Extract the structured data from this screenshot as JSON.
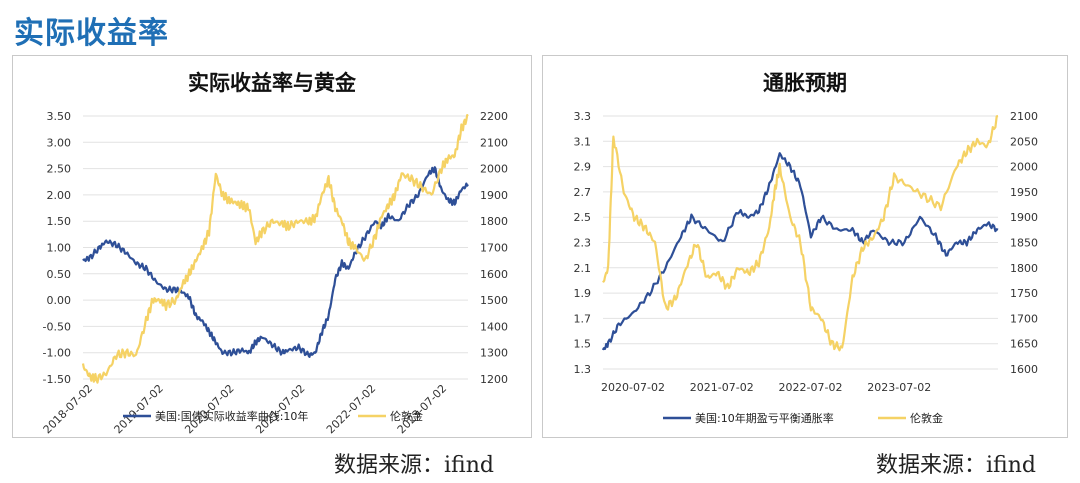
{
  "page": {
    "title": "实际收益率"
  },
  "colors": {
    "blue": "#2e4f97",
    "gold": "#f5d265",
    "title_blue": "#1f6fb5"
  },
  "chart_data": [
    {
      "type": "line",
      "title": "实际收益率与黄金",
      "x_ticks": [
        "2018-07-02",
        "2019-07-02",
        "2020-07-02",
        "2021-07-02",
        "2022-07-02",
        "2023-07-02"
      ],
      "y_left": {
        "lim": [
          -1.5,
          3.5
        ],
        "ticks": [
          "3.50",
          "3.00",
          "2.50",
          "2.00",
          "1.50",
          "1.00",
          "0.50",
          "0.00",
          "-0.50",
          "-1.00",
          "-1.50"
        ]
      },
      "y_right": {
        "lim": [
          1200,
          2200
        ],
        "ticks": [
          "2200",
          "2100",
          "2000",
          "1900",
          "1800",
          "1700",
          "1600",
          "1500",
          "1400",
          "1300",
          "1200"
        ]
      },
      "x_range": [
        2018.5,
        2024.3
      ],
      "series": [
        {
          "name": "美国:国债实际收益率曲线:10年",
          "axis": "left",
          "color": "#2e4f97",
          "x": [
            2018.5,
            2018.6,
            2018.75,
            2018.85,
            2019.0,
            2019.15,
            2019.3,
            2019.45,
            2019.6,
            2019.75,
            2019.9,
            2020.0,
            2020.1,
            2020.2,
            2020.3,
            2020.4,
            2020.5,
            2020.6,
            2020.75,
            2020.9,
            2021.0,
            2021.1,
            2021.2,
            2021.35,
            2021.5,
            2021.6,
            2021.75,
            2021.9,
            2022.0,
            2022.1,
            2022.2,
            2022.3,
            2022.4,
            2022.5,
            2022.6,
            2022.75,
            2022.9,
            2023.0,
            2023.1,
            2023.25,
            2023.4,
            2023.55,
            2023.7,
            2023.8,
            2023.9,
            2024.0,
            2024.1,
            2024.2,
            2024.3
          ],
          "values": [
            0.75,
            0.8,
            1.0,
            1.12,
            1.05,
            0.9,
            0.7,
            0.6,
            0.35,
            0.2,
            0.2,
            0.15,
            0.05,
            -0.3,
            -0.4,
            -0.6,
            -0.8,
            -1.0,
            -1.0,
            -0.95,
            -1.0,
            -0.8,
            -0.7,
            -0.85,
            -1.0,
            -0.95,
            -0.9,
            -1.05,
            -1.0,
            -0.6,
            -0.3,
            0.4,
            0.7,
            0.6,
            0.9,
            1.2,
            1.5,
            1.4,
            1.6,
            1.5,
            1.8,
            2.0,
            2.4,
            2.5,
            2.1,
            1.9,
            1.85,
            2.1,
            2.2
          ]
        },
        {
          "name": "伦敦金",
          "axis": "right",
          "color": "#f5d265",
          "x": [
            2018.5,
            2018.6,
            2018.7,
            2018.85,
            2019.0,
            2019.15,
            2019.3,
            2019.45,
            2019.55,
            2019.65,
            2019.75,
            2019.9,
            2020.0,
            2020.1,
            2020.2,
            2020.3,
            2020.4,
            2020.5,
            2020.6,
            2020.7,
            2020.8,
            2020.9,
            2021.0,
            2021.1,
            2021.2,
            2021.35,
            2021.5,
            2021.6,
            2021.75,
            2021.9,
            2022.0,
            2022.1,
            2022.2,
            2022.3,
            2022.4,
            2022.5,
            2022.6,
            2022.75,
            2022.9,
            2023.0,
            2023.1,
            2023.2,
            2023.3,
            2023.45,
            2023.6,
            2023.75,
            2023.9,
            2024.0,
            2024.1,
            2024.2,
            2024.3
          ],
          "values": [
            1250,
            1210,
            1200,
            1220,
            1290,
            1300,
            1290,
            1420,
            1500,
            1500,
            1480,
            1500,
            1560,
            1600,
            1650,
            1700,
            1760,
            1980,
            1900,
            1880,
            1870,
            1860,
            1850,
            1720,
            1760,
            1800,
            1790,
            1780,
            1800,
            1800,
            1810,
            1900,
            1960,
            1850,
            1800,
            1720,
            1700,
            1650,
            1740,
            1820,
            1860,
            1900,
            1980,
            1960,
            1930,
            1900,
            2000,
            2040,
            2050,
            2150,
            2200
          ]
        }
      ],
      "legend": [
        "美国:国债实际收益率曲线:10年",
        "伦敦金"
      ],
      "legend_position": "bottom"
    },
    {
      "type": "line",
      "title": "通胀预期",
      "x_ticks": [
        "2020-07-02",
        "2021-07-02",
        "2022-07-02",
        "2023-07-02"
      ],
      "y_left": {
        "lim": [
          1.3,
          3.3
        ],
        "ticks": [
          "3.3",
          "3.1",
          "2.9",
          "2.7",
          "2.5",
          "2.3",
          "2.1",
          "1.9",
          "1.7",
          "1.5",
          "1.3"
        ]
      },
      "y_right": {
        "lim": [
          1600,
          2100
        ],
        "ticks": [
          "2100",
          "2050",
          "2000",
          "1950",
          "1900",
          "1850",
          "1800",
          "1750",
          "1700",
          "1650",
          "1600"
        ]
      },
      "x_range": [
        2020.5,
        2024.3
      ],
      "series": [
        {
          "name": "美国:10年期盈亏平衡通胀率",
          "axis": "left",
          "color": "#2e4f97",
          "x": [
            2020.5,
            2020.55,
            2020.65,
            2020.8,
            2020.95,
            2021.1,
            2021.25,
            2021.35,
            2021.5,
            2021.65,
            2021.8,
            2021.9,
            2022.0,
            2022.1,
            2022.2,
            2022.3,
            2022.4,
            2022.5,
            2022.6,
            2022.75,
            2022.9,
            2023.0,
            2023.1,
            2023.25,
            2023.4,
            2023.55,
            2023.7,
            2023.8,
            2023.9,
            2024.0,
            2024.1,
            2024.2,
            2024.3
          ],
          "values": [
            1.45,
            1.5,
            1.65,
            1.75,
            1.9,
            2.1,
            2.35,
            2.5,
            2.4,
            2.3,
            2.55,
            2.5,
            2.55,
            2.75,
            3.0,
            2.9,
            2.75,
            2.35,
            2.5,
            2.4,
            2.4,
            2.3,
            2.4,
            2.3,
            2.3,
            2.5,
            2.35,
            2.2,
            2.3,
            2.3,
            2.4,
            2.45,
            2.4
          ]
        },
        {
          "name": "伦敦金",
          "axis": "right",
          "color": "#f5d265",
          "x": [
            2020.5,
            2020.55,
            2020.6,
            2020.7,
            2020.8,
            2020.9,
            2021.0,
            2021.1,
            2021.2,
            2021.3,
            2021.4,
            2021.5,
            2021.6,
            2021.7,
            2021.8,
            2021.9,
            2022.0,
            2022.1,
            2022.15,
            2022.2,
            2022.3,
            2022.4,
            2022.5,
            2022.6,
            2022.7,
            2022.8,
            2022.9,
            2023.0,
            2023.1,
            2023.2,
            2023.3,
            2023.45,
            2023.6,
            2023.75,
            2023.9,
            2024.0,
            2024.1,
            2024.2,
            2024.3
          ],
          "values": [
            1770,
            1800,
            2060,
            1950,
            1900,
            1880,
            1850,
            1720,
            1740,
            1800,
            1850,
            1780,
            1790,
            1760,
            1800,
            1790,
            1810,
            1880,
            1950,
            2000,
            1900,
            1850,
            1720,
            1700,
            1650,
            1640,
            1780,
            1840,
            1860,
            1900,
            1980,
            1960,
            1940,
            1920,
            2000,
            2030,
            2050,
            2040,
            2100
          ]
        }
      ],
      "legend": [
        "美国:10年期盈亏平衡通胀率",
        "伦敦金"
      ],
      "legend_position": "bottom"
    }
  ],
  "sources": [
    "数据来源：ifind",
    "数据来源：ifind"
  ]
}
